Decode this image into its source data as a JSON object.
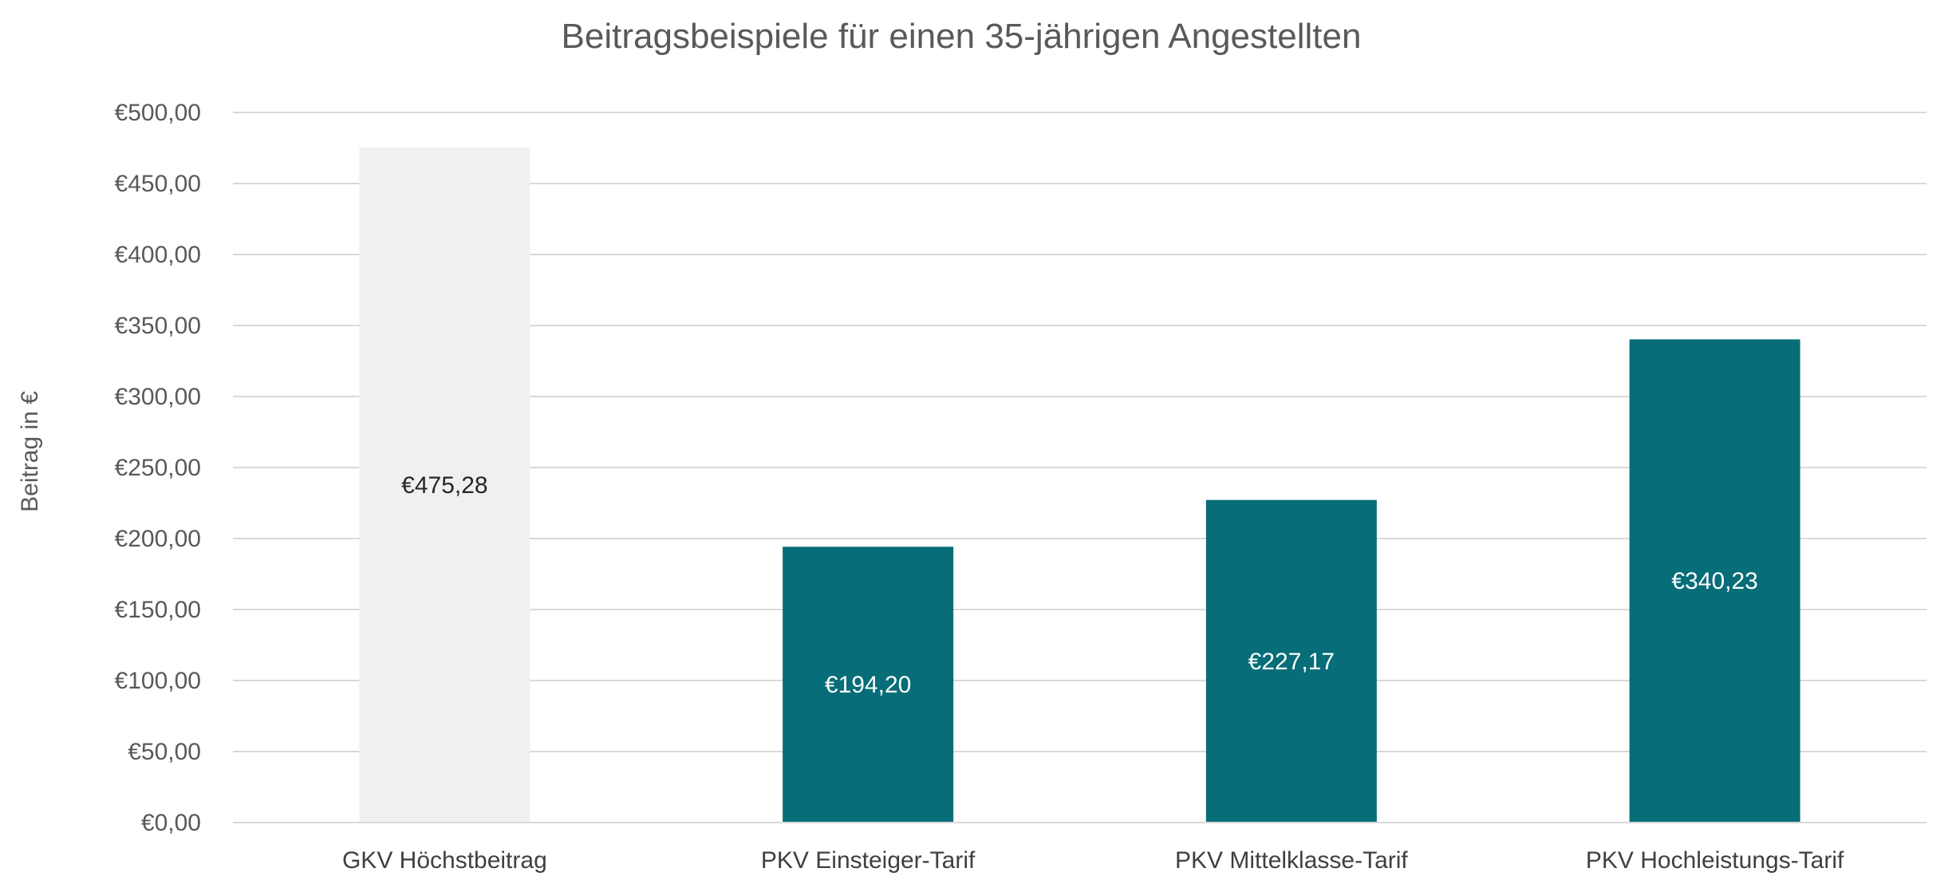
{
  "chart_data": {
    "type": "bar",
    "title": "Beitragsbeispiele für einen 35-jährigen Angestellten",
    "xlabel": "",
    "ylabel": "Beitrag in €",
    "ylim": [
      0,
      500
    ],
    "y_tick_values": [
      0,
      50,
      100,
      150,
      200,
      250,
      300,
      350,
      400,
      450,
      500
    ],
    "y_tick_labels": [
      "€0,00",
      "€50,00",
      "€100,00",
      "€150,00",
      "€200,00",
      "€250,00",
      "€300,00",
      "€350,00",
      "€400,00",
      "€450,00",
      "€500,00"
    ],
    "grid": true,
    "legend": "none",
    "categories": [
      "GKV Höchstbeitrag",
      "PKV Einsteiger-Tarif",
      "PKV Mittelklasse-Tarif",
      "PKV Hochleistungs-Tarif"
    ],
    "values": [
      475.28,
      194.2,
      227.17,
      340.23
    ],
    "data_labels": [
      "€475,28",
      "€194,20",
      "€227,17",
      "€340,23"
    ],
    "bar_colors": [
      "#f0f0f0",
      "#076d78",
      "#076d78",
      "#076d78"
    ],
    "label_colors": [
      "#262626",
      "#ffffff",
      "#ffffff",
      "#ffffff"
    ]
  }
}
